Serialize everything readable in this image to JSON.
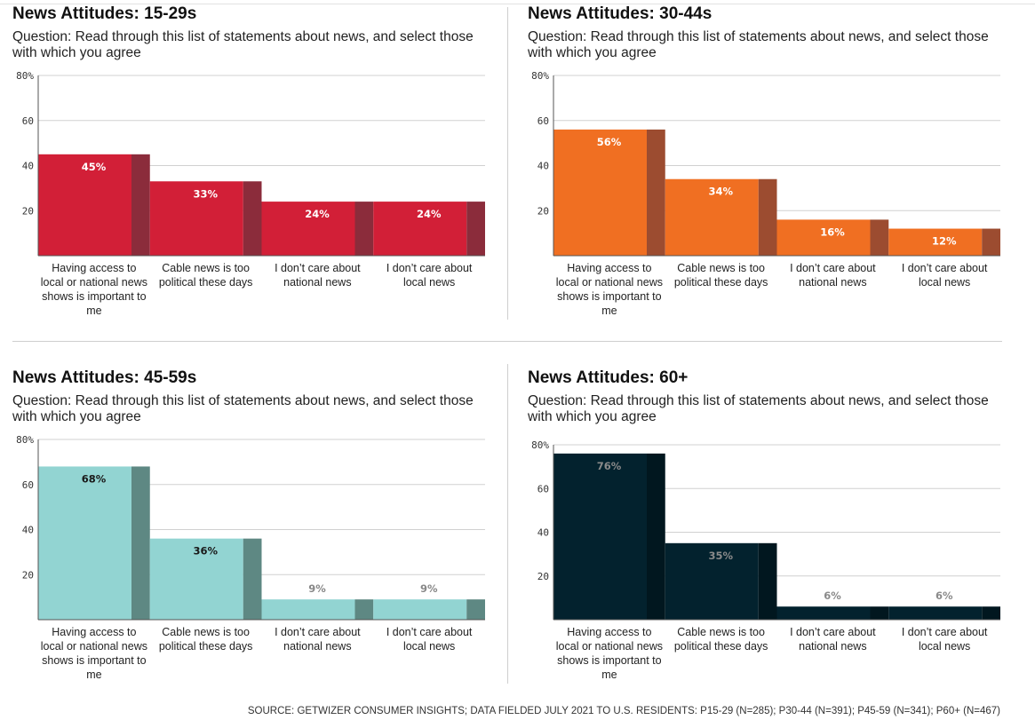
{
  "source": "SOURCE: GETWIZER CONSUMER INSIGHTS; DATA FIELDED JULY 2021 TO U.S. RESIDENTS: P15-29 (N=285); P30-44 (N=391); P45-59 (N=341); P60+ (N=467)",
  "chart_data": [
    {
      "type": "bar",
      "title": "News Attitudes: 15-29s",
      "subtitle": "Question: Read through this list of statements about news, and select those with which you agree",
      "categories": [
        "Having access to local or national news shows is important to me",
        "Cable news is too political these days",
        "I don’t care about national news",
        "I don’t care about local news"
      ],
      "values": [
        45,
        33,
        24,
        24
      ],
      "value_labels": [
        "45%",
        "33%",
        "24%",
        "24%"
      ],
      "y_ticks": [
        "80%",
        "60",
        "40",
        "20"
      ],
      "ylim": [
        0,
        80
      ],
      "grid": true,
      "colors": {
        "bar": "#d21f37",
        "side": "#8b2c3b",
        "label": "#ffffff"
      }
    },
    {
      "type": "bar",
      "title": "News Attitudes: 30-44s",
      "subtitle": "Question: Read through this list of statements about news, and select those with which you agree",
      "categories": [
        "Having access to local or national news shows is important to me",
        "Cable news is too political these days",
        "I don’t care about national news",
        "I don’t care about local news"
      ],
      "values": [
        56,
        34,
        16,
        12
      ],
      "value_labels": [
        "56%",
        "34%",
        "16%",
        "12%"
      ],
      "y_ticks": [
        "80%",
        "60",
        "40",
        "20"
      ],
      "ylim": [
        0,
        80
      ],
      "grid": true,
      "colors": {
        "bar": "#f06f22",
        "side": "#9c4c30",
        "label": "#ffffff"
      }
    },
    {
      "type": "bar",
      "title": "News Attitudes: 45-59s",
      "subtitle": "Question: Read through this list of statements about news, and select those with which you agree",
      "categories": [
        "Having access to local or national news shows is important to me",
        "Cable news is too political these days",
        "I don’t care about national news",
        "I don’t care about local news"
      ],
      "values": [
        68,
        36,
        9,
        9
      ],
      "value_labels": [
        "68%",
        "36%",
        "9%",
        "9%"
      ],
      "y_ticks": [
        "80%",
        "60",
        "40",
        "20"
      ],
      "ylim": [
        0,
        80
      ],
      "grid": true,
      "colors": {
        "bar": "#92d4d2",
        "side": "#5e8883",
        "label": "#1a1a1a"
      }
    },
    {
      "type": "bar",
      "title": "News Attitudes: 60+",
      "subtitle": "Question: Read through this list of statements about news, and select those with which you agree",
      "categories": [
        "Having access to local or national news shows is important to me",
        "Cable news is too political these days",
        "I don’t care about national news",
        "I don’t care about local news"
      ],
      "values": [
        76,
        35,
        6,
        6
      ],
      "value_labels": [
        "76%",
        "35%",
        "6%",
        "6%"
      ],
      "y_ticks": [
        "80%",
        "60",
        "40",
        "20"
      ],
      "ylim": [
        0,
        80
      ],
      "grid": true,
      "colors": {
        "bar": "#03222e",
        "side": "#01171f",
        "label": "#8a8a8a"
      }
    }
  ]
}
